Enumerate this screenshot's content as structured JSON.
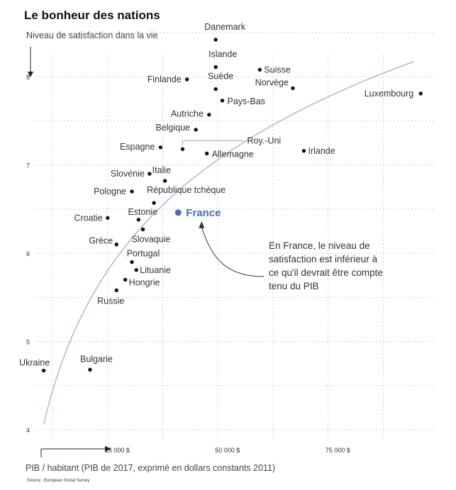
{
  "chart_data": {
    "type": "scatter",
    "title": "Le bonheur des nations",
    "ylabel": "Niveau de satisfaction dans la vie",
    "xlabel": "PIB / habitant (PIB de 2017, exprimé en dollars constants 2011)",
    "source": "Source : European Social Survey",
    "xlim": [
      5000,
      97000
    ],
    "ylim": [
      4,
      8.5
    ],
    "x_ticks": [
      {
        "value": 25000,
        "label": "25 000 $"
      },
      {
        "value": 50000,
        "label": "50 000 $"
      },
      {
        "value": 75000,
        "label": "75 000 $"
      }
    ],
    "y_ticks": [
      {
        "value": 4,
        "label": "4"
      },
      {
        "value": 5,
        "label": "5"
      },
      {
        "value": 6,
        "label": "6"
      },
      {
        "value": 7,
        "label": "7"
      },
      {
        "value": 8,
        "label": "8"
      }
    ],
    "points": [
      {
        "name": "Danemark",
        "x": 47000,
        "y": 8.42
      },
      {
        "name": "Islande",
        "x": 47000,
        "y": 8.11
      },
      {
        "name": "Suisse",
        "x": 57000,
        "y": 8.08
      },
      {
        "name": "Finlande",
        "x": 40500,
        "y": 7.97
      },
      {
        "name": "Suède",
        "x": 47000,
        "y": 7.86
      },
      {
        "name": "Norvège",
        "x": 64500,
        "y": 7.87
      },
      {
        "name": "Luxembourg",
        "x": 93500,
        "y": 7.81
      },
      {
        "name": "Pays-Bas",
        "x": 48500,
        "y": 7.73
      },
      {
        "name": "Autriche",
        "x": 45500,
        "y": 7.57
      },
      {
        "name": "Belgique",
        "x": 42500,
        "y": 7.4
      },
      {
        "name": "Espagne",
        "x": 34500,
        "y": 7.2
      },
      {
        "name": "Roy.-Uni",
        "x": 39500,
        "y": 7.18
      },
      {
        "name": "Allemagne",
        "x": 45000,
        "y": 7.13
      },
      {
        "name": "Irlande",
        "x": 67000,
        "y": 7.16
      },
      {
        "name": "Slovénie",
        "x": 32000,
        "y": 6.9
      },
      {
        "name": "Italie",
        "x": 35500,
        "y": 6.82
      },
      {
        "name": "Pologne",
        "x": 28000,
        "y": 6.7
      },
      {
        "name": "République tchèque",
        "x": 33000,
        "y": 6.57
      },
      {
        "name": "France",
        "x": 38500,
        "y": 6.46,
        "highlight": true
      },
      {
        "name": "Croatie",
        "x": 22500,
        "y": 6.4
      },
      {
        "name": "Estonie",
        "x": 29500,
        "y": 6.38
      },
      {
        "name": "Slovaquie",
        "x": 30500,
        "y": 6.27
      },
      {
        "name": "Grèce",
        "x": 24500,
        "y": 6.1
      },
      {
        "name": "Portugal",
        "x": 28000,
        "y": 5.9
      },
      {
        "name": "Lituanie",
        "x": 29000,
        "y": 5.81
      },
      {
        "name": "Hongrie",
        "x": 26500,
        "y": 5.7
      },
      {
        "name": "Russie",
        "x": 24500,
        "y": 5.58
      },
      {
        "name": "Ukraine",
        "x": 8000,
        "y": 4.67
      },
      {
        "name": "Bulgarie",
        "x": 18500,
        "y": 4.68
      }
    ],
    "trend_line": {
      "type": "logarithmic",
      "color": "#aab8dc",
      "points": [
        [
          8000,
          4.1
        ],
        [
          15000,
          5.04
        ],
        [
          25000,
          5.96
        ],
        [
          35000,
          6.6
        ],
        [
          50000,
          7.2
        ],
        [
          75000,
          7.82
        ],
        [
          92000,
          8.14
        ]
      ]
    },
    "annotation": {
      "target": "France",
      "lines": [
        "En France, le niveau de",
        "satisfaction est inférieur à",
        "ce qu'il devrait être compte",
        "tenu du PIB"
      ]
    },
    "highlight_color": "#4a6fb2",
    "point_color": "#111111"
  }
}
